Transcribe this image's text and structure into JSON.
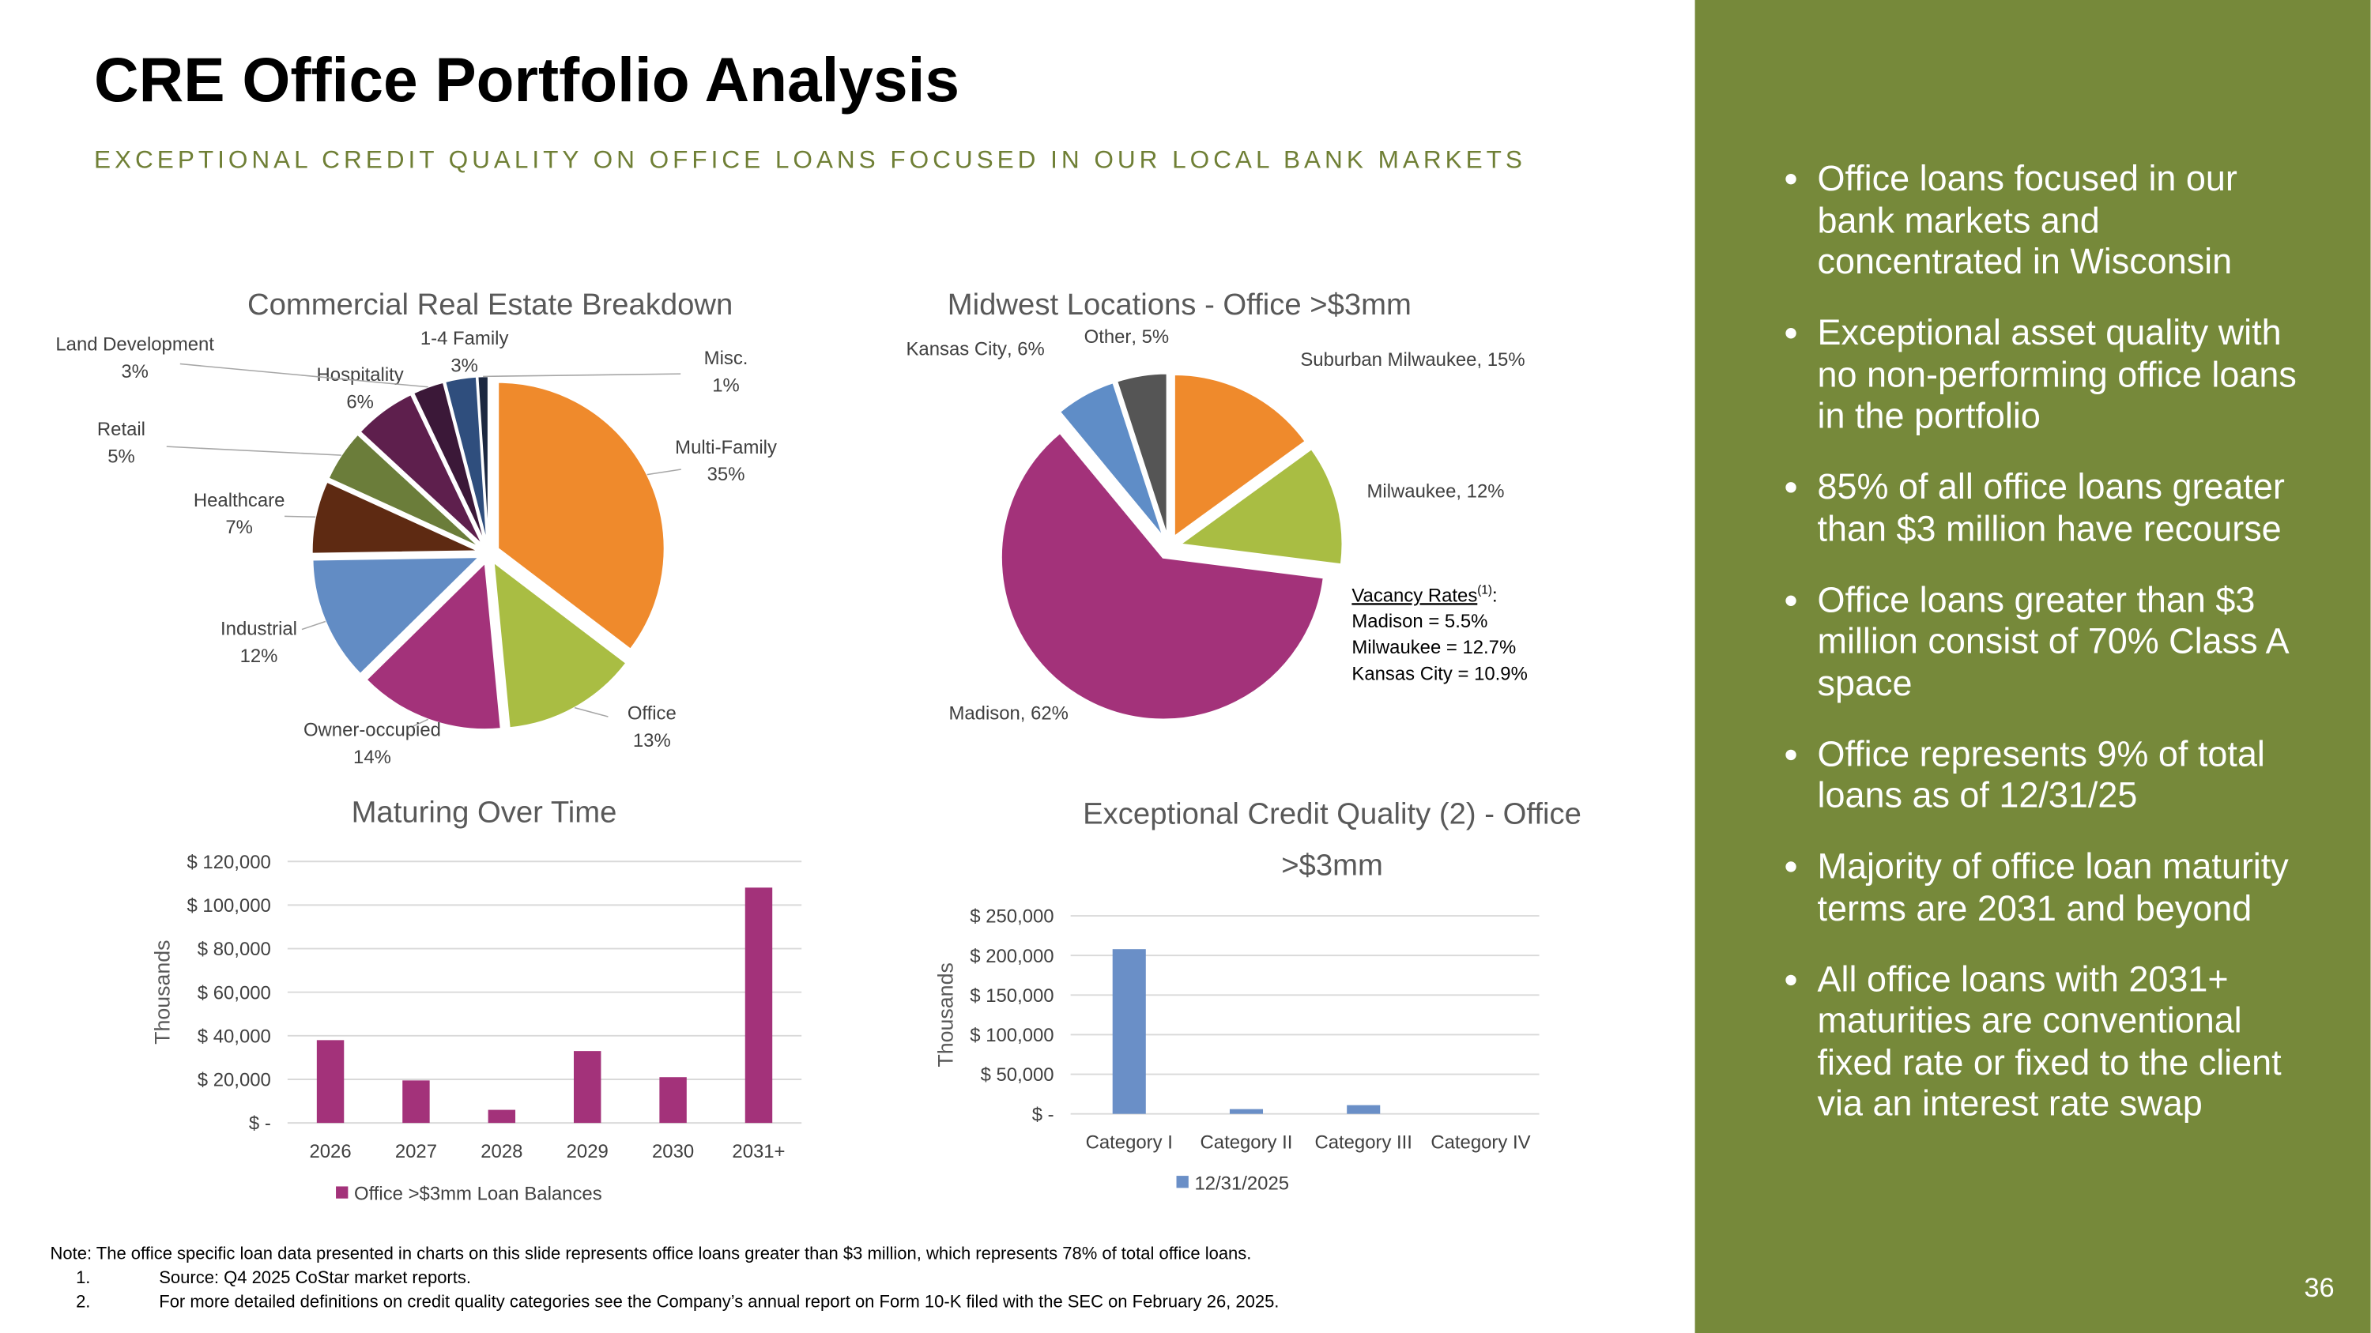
{
  "title": "CRE Office Portfolio Analysis",
  "subtitle": "EXCEPTIONAL CREDIT QUALITY ON OFFICE LOANS FOCUSED IN OUR LOCAL BANK MARKETS",
  "chart_data": [
    {
      "type": "pie",
      "title": "Commercial Real Estate Breakdown",
      "categories": [
        "Multi-Family",
        "Office",
        "Owner-occupied",
        "Industrial",
        "Healthcare",
        "Retail",
        "Hospitality",
        "Land Development",
        "1-4 Family",
        "Misc."
      ],
      "values": [
        35,
        13,
        14,
        12,
        7,
        5,
        6,
        3,
        3,
        1
      ],
      "value_labels": [
        "35%",
        "13%",
        "14%",
        "12%",
        "7%",
        "5%",
        "6%",
        "3%",
        "3%",
        "1%"
      ],
      "colors": [
        "#ef8a2c",
        "#a9bd43",
        "#a3327a",
        "#628cc4",
        "#5e2a12",
        "#6b7d3a",
        "#5e1f4d",
        "#3b1838",
        "#2f4e7d",
        "#1c2840"
      ]
    },
    {
      "type": "pie",
      "title": "Midwest Locations - Office >$3mm",
      "categories": [
        "Suburban Milwaukee",
        "Milwaukee",
        "Madison",
        "Kansas City",
        "Other"
      ],
      "values": [
        15,
        12,
        62,
        6,
        5
      ],
      "value_labels": [
        "15%",
        "12%",
        "62%",
        "6%",
        "5%"
      ],
      "colors": [
        "#ef8a2c",
        "#a9bd43",
        "#a3327a",
        "#5f8dc7",
        "#555555"
      ],
      "annotation": {
        "title": "Vacancy Rates",
        "superscript": "(1)",
        "suffix": ":",
        "lines": [
          "Madison = 5.5%",
          "Milwaukee = 12.7%",
          "Kansas City = 10.9%"
        ]
      }
    },
    {
      "type": "bar",
      "title": "Maturing Over Time",
      "y_label": "Thousands",
      "categories": [
        "2026",
        "2027",
        "2028",
        "2029",
        "2030",
        "2031+"
      ],
      "series": [
        {
          "name": "Office >$3mm Loan Balances",
          "color": "#a3327a",
          "values": [
            38000,
            19500,
            6000,
            33000,
            21000,
            108000
          ]
        }
      ],
      "ylim": [
        0,
        120000
      ],
      "yticks": [
        {
          "value": 0,
          "label": "$ -"
        },
        {
          "value": 20000,
          "label": "$ 20,000"
        },
        {
          "value": 40000,
          "label": "$ 40,000"
        },
        {
          "value": 60000,
          "label": "$ 60,000"
        },
        {
          "value": 80000,
          "label": "$ 80,000"
        },
        {
          "value": 100000,
          "label": "$ 100,000"
        },
        {
          "value": 120000,
          "label": "$ 120,000"
        }
      ],
      "grid": true
    },
    {
      "type": "bar",
      "title": "Exceptional Credit Quality (2) - Office >$3mm",
      "y_label": "Thousands",
      "categories": [
        "Category I",
        "Category II",
        "Category III",
        "Category IV"
      ],
      "series": [
        {
          "name": "12/31/2025",
          "color": "#6a8fc7",
          "values": [
            208000,
            6000,
            11000,
            0
          ]
        }
      ],
      "ylim": [
        0,
        250000
      ],
      "yticks": [
        {
          "value": 0,
          "label": "$ -"
        },
        {
          "value": 50000,
          "label": "$ 50,000"
        },
        {
          "value": 100000,
          "label": "$ 100,000"
        },
        {
          "value": 150000,
          "label": "$ 150,000"
        },
        {
          "value": 200000,
          "label": "$ 200,000"
        },
        {
          "value": 250000,
          "label": "$ 250,000"
        }
      ],
      "grid": true
    }
  ],
  "bullets": [
    "Office loans focused in our bank markets and concentrated in Wisconsin",
    "Exceptional asset quality with no non-performing office loans in the portfolio",
    "85% of all office loans greater than $3 million have recourse",
    "Office loans greater than $3 million consist of 70% Class A space",
    "Office represents 9% of total loans as of 12/31/25",
    "Majority of office loan maturity terms are 2031 and beyond",
    "All office loans with 2031+ maturities are conventional fixed rate or fixed to the client via an interest rate swap"
  ],
  "notes": {
    "note": "Note: The office specific loan data presented in charts on this slide represents office loans greater than $3 million, which represents 78% of total office loans.",
    "footnotes": [
      {
        "number": "1.",
        "text": "Source: Q4 2025 CoStar market reports."
      },
      {
        "number": "2.",
        "text": "For more detailed definitions on credit quality categories see the Company’s annual report on Form  10-K filed with the SEC on February 26, 2025."
      }
    ]
  },
  "page_number": "36"
}
